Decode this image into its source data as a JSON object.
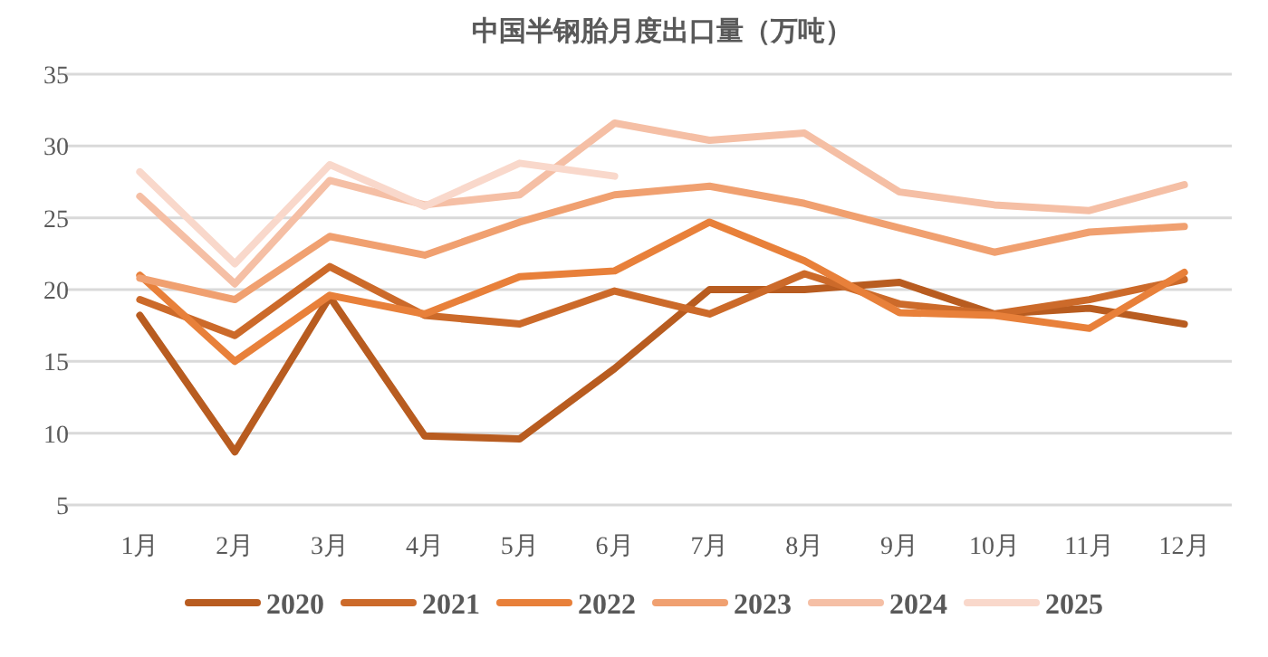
{
  "chart_data": {
    "type": "line",
    "title": "中国半钢胎月度出口量（万吨）",
    "categories": [
      "1月",
      "2月",
      "3月",
      "4月",
      "5月",
      "6月",
      "7月",
      "8月",
      "9月",
      "10月",
      "11月",
      "12月"
    ],
    "series": [
      {
        "name": "2020",
        "color": "#b85c20",
        "values": [
          18.2,
          8.7,
          19.5,
          9.8,
          9.6,
          14.5,
          20.0,
          20.0,
          20.5,
          18.3,
          18.7,
          17.6
        ]
      },
      {
        "name": "2021",
        "color": "#cc6a2a",
        "values": [
          19.3,
          16.8,
          21.6,
          18.2,
          17.6,
          19.9,
          18.3,
          21.1,
          19.0,
          18.3,
          19.3,
          20.7
        ]
      },
      {
        "name": "2022",
        "color": "#e8803a",
        "values": [
          21.0,
          15.0,
          19.6,
          18.3,
          20.9,
          21.3,
          24.7,
          22.0,
          18.4,
          18.2,
          17.3,
          21.2
        ]
      },
      {
        "name": "2023",
        "color": "#f0a070",
        "values": [
          20.8,
          19.3,
          23.7,
          22.4,
          24.7,
          26.6,
          27.2,
          26.0,
          24.3,
          22.6,
          24.0,
          24.4
        ]
      },
      {
        "name": "2024",
        "color": "#f5bfa5",
        "values": [
          26.5,
          20.4,
          27.6,
          25.9,
          26.6,
          31.6,
          30.4,
          30.9,
          26.8,
          25.9,
          25.5,
          27.3
        ]
      },
      {
        "name": "2025",
        "color": "#f9d8cb",
        "values": [
          28.2,
          21.8,
          28.7,
          25.8,
          28.8,
          27.9,
          null,
          null,
          null,
          null,
          null,
          null
        ]
      }
    ],
    "ylim": [
      5,
      35
    ],
    "yticks": [
      5,
      10,
      15,
      20,
      25,
      30,
      35
    ],
    "grid": "y",
    "legend": "bottom",
    "marker": "none",
    "line_style": "solid"
  }
}
